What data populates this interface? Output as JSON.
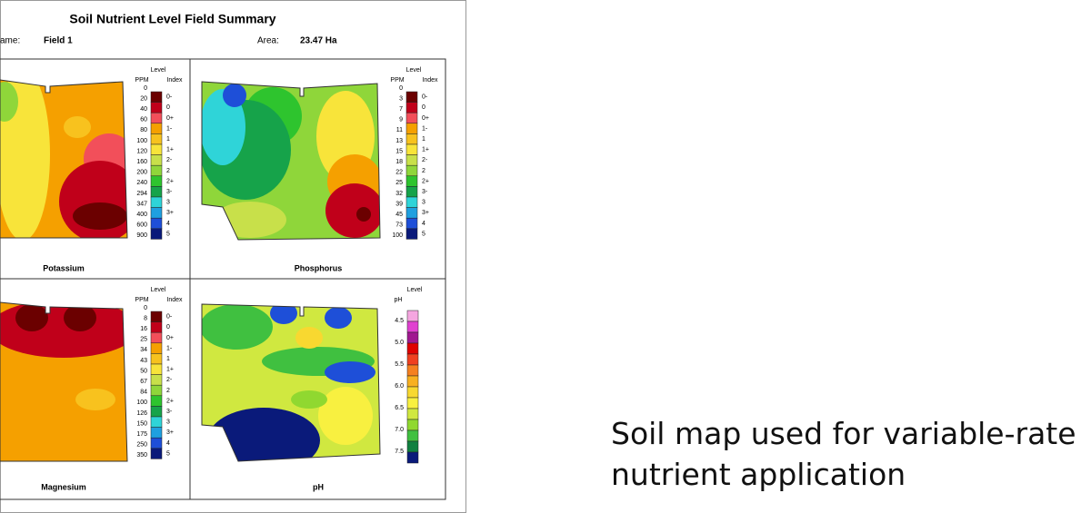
{
  "header": {
    "title": "Soil Nutrient Level Field Summary",
    "field_name_label": "ame:",
    "field_name": "Field 1",
    "area_label": "Area:",
    "area": "23.47 Ha"
  },
  "panels": [
    {
      "label": "Potassium",
      "level_header": "Level",
      "unit_header": "PPM",
      "index_header": "Index",
      "values": [
        "0",
        "20",
        "40",
        "60",
        "80",
        "100",
        "120",
        "160",
        "200",
        "240",
        "294",
        "347",
        "400",
        "600",
        "900"
      ],
      "index_labels": [
        "0-",
        "0",
        "0+",
        "1-",
        "1",
        "1+",
        "2-",
        "2",
        "2+",
        "3-",
        "3",
        "3+",
        "4",
        "5"
      ],
      "colors": [
        "#6b0000",
        "#c0001a",
        "#f24f5a",
        "#f5a000",
        "#f7c21e",
        "#f8e43a",
        "#c8e04a",
        "#8fd63a",
        "#2ec42e",
        "#16a34a",
        "#2fd4d8",
        "#1fa0e0",
        "#1e4fd8",
        "#0a1a7a"
      ]
    },
    {
      "label": "Phosphorus",
      "level_header": "Level",
      "unit_header": "PPM",
      "index_header": "Index",
      "values": [
        "0",
        "3",
        "7",
        "9",
        "11",
        "13",
        "15",
        "18",
        "22",
        "25",
        "32",
        "39",
        "45",
        "73",
        "100"
      ],
      "index_labels": [
        "0-",
        "0",
        "0+",
        "1-",
        "1",
        "1+",
        "2-",
        "2",
        "2+",
        "3-",
        "3",
        "3+",
        "4",
        "5"
      ],
      "colors": [
        "#6b0000",
        "#c0001a",
        "#f24f5a",
        "#f5a000",
        "#f7c21e",
        "#f8e43a",
        "#c8e04a",
        "#8fd63a",
        "#2ec42e",
        "#16a34a",
        "#2fd4d8",
        "#1fa0e0",
        "#1e4fd8",
        "#0a1a7a"
      ]
    },
    {
      "label": "Magnesium",
      "level_header": "Level",
      "unit_header": "PPM",
      "index_header": "Index",
      "values": [
        "0",
        "8",
        "16",
        "25",
        "34",
        "43",
        "50",
        "67",
        "84",
        "100",
        "126",
        "150",
        "175",
        "250",
        "350"
      ],
      "index_labels": [
        "0-",
        "0",
        "0+",
        "1-",
        "1",
        "1+",
        "2-",
        "2",
        "2+",
        "3-",
        "3",
        "3+",
        "4",
        "5"
      ],
      "colors": [
        "#6b0000",
        "#c0001a",
        "#f24f5a",
        "#f5a000",
        "#f7c21e",
        "#f8e43a",
        "#c8e04a",
        "#8fd63a",
        "#2ec42e",
        "#16a34a",
        "#2fd4d8",
        "#1fa0e0",
        "#1e4fd8",
        "#0a1a7a"
      ]
    },
    {
      "label": "pH",
      "level_header": "Level",
      "unit_header": "pH",
      "values": [
        "4.5",
        "5.0",
        "5.5",
        "6.0",
        "6.5",
        "7.0",
        "7.5"
      ],
      "colors": [
        "#f5a6e0",
        "#e040d0",
        "#a01890",
        "#e00000",
        "#f04020",
        "#f58020",
        "#f8b020",
        "#f8d830",
        "#f8f040",
        "#d0e840",
        "#90d830",
        "#40c040",
        "#108040",
        "#0a1a7a"
      ]
    }
  ],
  "caption": {
    "lines": [
      "Soil map used for variable-rate",
      "nutrient application"
    ]
  }
}
